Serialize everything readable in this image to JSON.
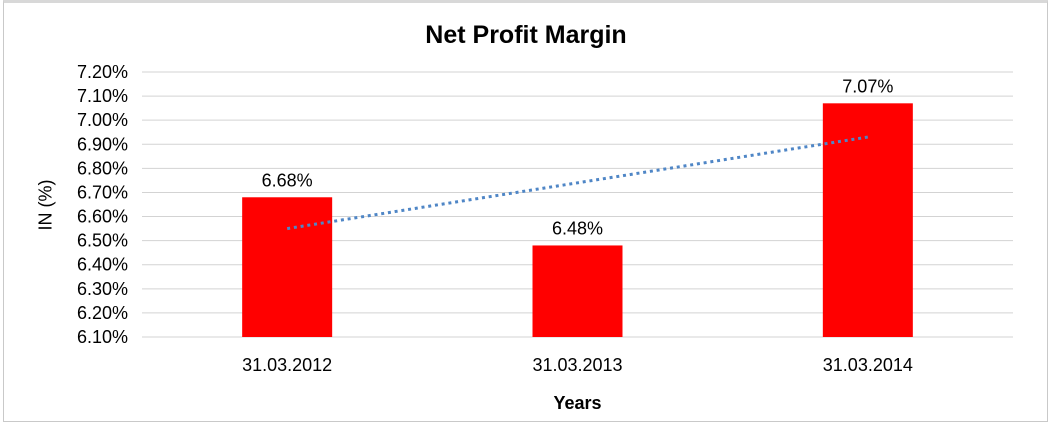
{
  "chart_data": {
    "type": "bar",
    "title": "Net Profit Margin",
    "ylabel": "IN (%)",
    "xlabel": "Years",
    "categories": [
      "31.03.2012",
      "31.03.2013",
      "31.03.2014"
    ],
    "values": [
      6.68,
      6.48,
      7.07
    ],
    "value_labels": [
      "6.68%",
      "6.48%",
      "7.07%"
    ],
    "ylim": [
      6.1,
      7.2
    ],
    "ytick_step": 0.1,
    "yticks": [
      "7.20%",
      "7.10%",
      "7.00%",
      "6.90%",
      "6.80%",
      "6.70%",
      "6.60%",
      "6.50%",
      "6.40%",
      "6.30%",
      "6.20%",
      "6.10%"
    ],
    "grid": true,
    "legend": null,
    "colors": {
      "bar": "#ff0000",
      "gridline": "#d3d3d3",
      "trendline": "#4f86c6",
      "text": "#000000",
      "frame_border": "#c9c9c9"
    },
    "trendline": {
      "type": "linear",
      "style": "dotted",
      "start_value": 6.55,
      "end_value": 6.93
    }
  }
}
